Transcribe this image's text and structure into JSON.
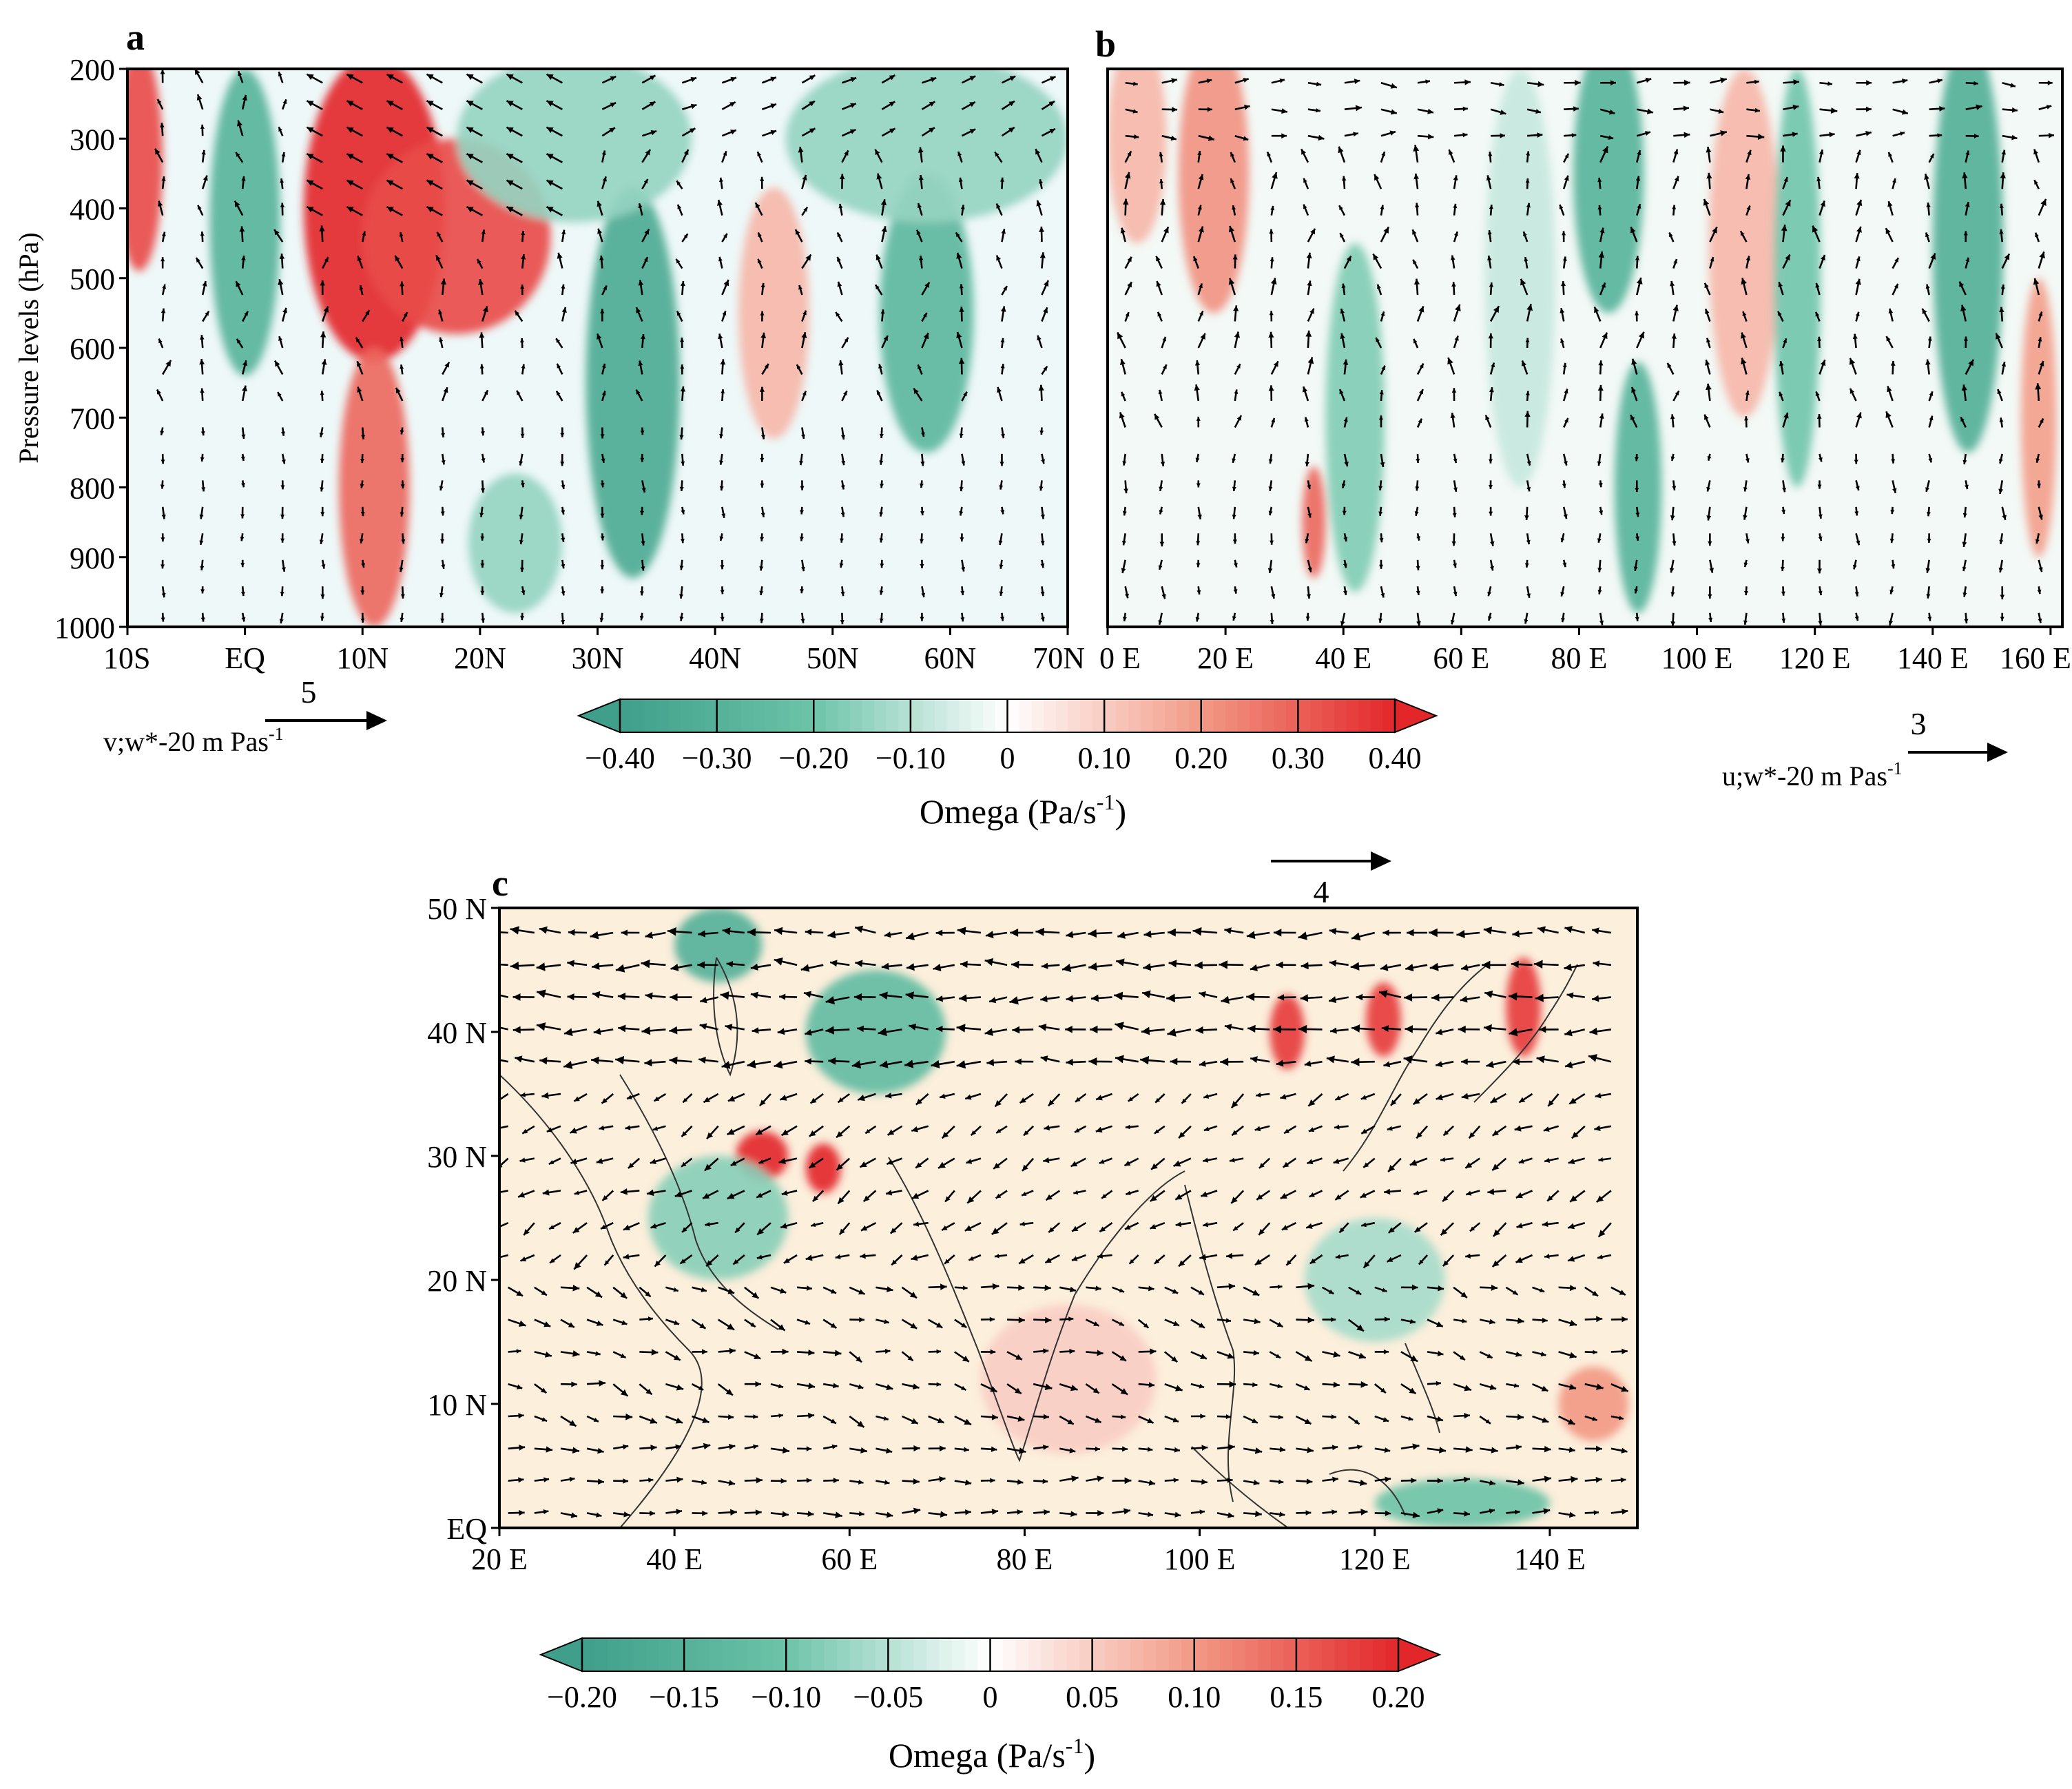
{
  "colors": {
    "neg_strong": "#3f9f8a",
    "neg_mid": "#6cc3a8",
    "neg_light": "#b7e2e6",
    "neutral": "#ffffff",
    "pos_light": "#fbd9c2",
    "pos_mid": "#f29a86",
    "pos_strong": "#e3262a",
    "axis": "#000000"
  },
  "chart_data": [
    {
      "panel": "a",
      "type": "heatmap",
      "title": "a",
      "xlabel": "",
      "ylabel": "Pressure levels (hPa)",
      "x_ticks": [
        "10S",
        "EQ",
        "10N",
        "20N",
        "30N",
        "40N",
        "50N",
        "60N",
        "70N"
      ],
      "x_values": [
        -10,
        0,
        10,
        20,
        30,
        40,
        50,
        60,
        70
      ],
      "xlim": [
        -10,
        70
      ],
      "y_ticks": [
        "200",
        "300",
        "400",
        "500",
        "600",
        "700",
        "800",
        "900",
        "1000"
      ],
      "y_values": [
        200,
        300,
        400,
        500,
        600,
        700,
        800,
        900,
        1000
      ],
      "ylim": [
        1000,
        200
      ],
      "vector_scale": {
        "value": "5",
        "label": "v;w*-20 m Pas-1"
      },
      "omega_blobs": [
        {
          "x": -9,
          "p": 330,
          "value": 0.35,
          "rx": 2,
          "rp": 160
        },
        {
          "x": 0,
          "p": 420,
          "value": -0.3,
          "rx": 3,
          "rp": 220
        },
        {
          "x": 11,
          "p": 400,
          "value": 0.42,
          "rx": 6,
          "rp": 220
        },
        {
          "x": 18,
          "p": 440,
          "value": 0.35,
          "rx": 8,
          "rp": 140
        },
        {
          "x": 11,
          "p": 800,
          "value": 0.3,
          "rx": 3,
          "rp": 200
        },
        {
          "x": 33,
          "p": 650,
          "value": -0.35,
          "rx": 4,
          "rp": 280
        },
        {
          "x": 28,
          "p": 300,
          "value": -0.15,
          "rx": 10,
          "rp": 120
        },
        {
          "x": 45,
          "p": 550,
          "value": 0.15,
          "rx": 3,
          "rp": 180
        },
        {
          "x": 58,
          "p": 550,
          "value": -0.28,
          "rx": 4,
          "rp": 200
        },
        {
          "x": 58,
          "p": 300,
          "value": -0.15,
          "rx": 12,
          "rp": 120
        },
        {
          "x": 23,
          "p": 880,
          "value": -0.15,
          "rx": 4,
          "rp": 100
        }
      ]
    },
    {
      "panel": "b",
      "type": "heatmap",
      "title": "b",
      "xlabel": "",
      "ylabel": "",
      "x_ticks": [
        "0 E",
        "20 E",
        "40 E",
        "60 E",
        "80 E",
        "100 E",
        "120 E",
        "140 E",
        "160 E"
      ],
      "x_values": [
        0,
        20,
        40,
        60,
        80,
        100,
        120,
        140,
        160
      ],
      "xlim": [
        0,
        162
      ],
      "ylim": [
        1000,
        200
      ],
      "vector_scale": {
        "value": "3",
        "label": "u;w*-20 m Pas-1"
      },
      "omega_blobs": [
        {
          "x": 18,
          "p": 350,
          "value": 0.22,
          "rx": 6,
          "rp": 200
        },
        {
          "x": 5,
          "p": 300,
          "value": 0.15,
          "rx": 5,
          "rp": 150
        },
        {
          "x": 35,
          "p": 850,
          "value": 0.3,
          "rx": 2,
          "rp": 80
        },
        {
          "x": 42,
          "p": 700,
          "value": -0.18,
          "rx": 5,
          "rp": 250
        },
        {
          "x": 85,
          "p": 350,
          "value": -0.3,
          "rx": 6,
          "rp": 200
        },
        {
          "x": 90,
          "p": 800,
          "value": -0.3,
          "rx": 4,
          "rp": 180
        },
        {
          "x": 108,
          "p": 450,
          "value": 0.15,
          "rx": 6,
          "rp": 250
        },
        {
          "x": 117,
          "p": 500,
          "value": -0.2,
          "rx": 4,
          "rp": 300
        },
        {
          "x": 146,
          "p": 450,
          "value": -0.32,
          "rx": 6,
          "rp": 300
        },
        {
          "x": 158,
          "p": 700,
          "value": 0.2,
          "rx": 3,
          "rp": 200
        },
        {
          "x": 70,
          "p": 500,
          "value": -0.08,
          "rx": 6,
          "rp": 300
        }
      ]
    },
    {
      "panel": "c",
      "type": "heatmap",
      "title": "c",
      "xlabel": "",
      "ylabel": "",
      "x_ticks": [
        "20 E",
        "40 E",
        "60 E",
        "80 E",
        "100 E",
        "120 E",
        "140 E"
      ],
      "x_values": [
        20,
        40,
        60,
        80,
        100,
        120,
        140
      ],
      "xlim": [
        20,
        150
      ],
      "y_ticks": [
        "50 N",
        "40 N",
        "30 N",
        "20 N",
        "10 N",
        "EQ"
      ],
      "y_values": [
        50,
        40,
        30,
        20,
        10,
        0
      ],
      "ylim": [
        0,
        50
      ],
      "vector_scale": {
        "value": "4"
      },
      "omega_blobs": [
        {
          "x": 50,
          "y": 30,
          "value": 0.2,
          "rx": 3,
          "ry": 2
        },
        {
          "x": 57,
          "y": 29,
          "value": 0.2,
          "rx": 2,
          "ry": 2
        },
        {
          "x": 110,
          "y": 40,
          "value": 0.18,
          "rx": 2,
          "ry": 3
        },
        {
          "x": 121,
          "y": 41,
          "value": 0.18,
          "rx": 2,
          "ry": 3
        },
        {
          "x": 137,
          "y": 42,
          "value": 0.18,
          "rx": 2,
          "ry": 4
        },
        {
          "x": 63,
          "y": 40,
          "value": -0.12,
          "rx": 8,
          "ry": 5
        },
        {
          "x": 45,
          "y": 47,
          "value": -0.15,
          "rx": 5,
          "ry": 3
        },
        {
          "x": 45,
          "y": 25,
          "value": -0.08,
          "rx": 8,
          "ry": 5
        },
        {
          "x": 120,
          "y": 20,
          "value": -0.06,
          "rx": 8,
          "ry": 5
        },
        {
          "x": 145,
          "y": 10,
          "value": 0.1,
          "rx": 4,
          "ry": 3
        },
        {
          "x": 130,
          "y": 2,
          "value": -0.1,
          "rx": 10,
          "ry": 2
        },
        {
          "x": 85,
          "y": 12,
          "value": 0.05,
          "rx": 10,
          "ry": 6
        }
      ]
    }
  ],
  "colorbar_top": {
    "ticks": [
      "−0.40",
      "−0.30",
      "−0.20",
      "−0.10",
      "0",
      "0.10",
      "0.20",
      "0.30",
      "0.40"
    ],
    "label": "Omega (Pa/s-1)"
  },
  "colorbar_bottom": {
    "ticks": [
      "−0.20",
      "−0.15",
      "−0.10",
      "−0.05",
      "0",
      "0.05",
      "0.10",
      "0.15",
      "0.20"
    ],
    "label": "Omega (Pa/s-1)"
  }
}
